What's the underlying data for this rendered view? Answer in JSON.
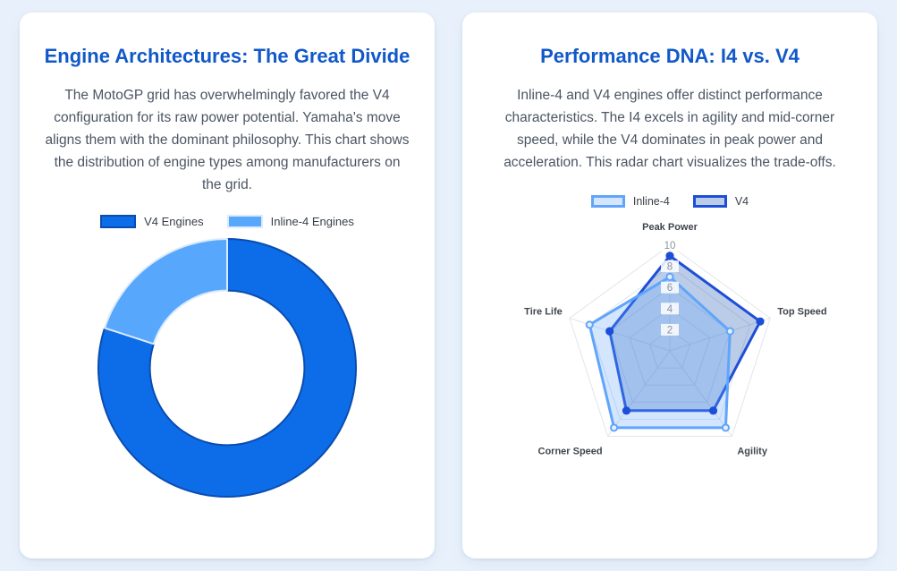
{
  "page": {
    "background_color": "#e8f1fb"
  },
  "cards": {
    "engine_architectures": {
      "title": "Engine Architectures: The Great Divide",
      "description": "The MotoGP grid has overwhelmingly favored the V4 configuration for its raw power potential. Yamaha's move aligns them with the dominant philosophy. This chart shows the distribution of engine types among manufacturers on the grid."
    },
    "performance_dna": {
      "title": "Performance DNA: I4 vs. V4",
      "description": "Inline-4 and V4 engines offer distinct performance characteristics. The I4 excels in agility and mid-corner speed, while the V4 dominates in peak power and acceleration. This radar chart visualizes the trade-offs."
    }
  },
  "theme": {
    "title_color": "#1158c9",
    "body_text_color": "#4b5563",
    "card_background": "#ffffff",
    "grid_color": "#e1e5ea",
    "tick_label_color": "#8d939c",
    "axis_label_color": "#40464e",
    "legend_text_color": "#3a4049"
  },
  "chart_data": [
    {
      "type": "pie",
      "variant": "doughnut",
      "card": "engine_architectures",
      "labels": [
        "V4 Engines",
        "Inline-4 Engines"
      ],
      "values": [
        4,
        1
      ],
      "percentages": [
        80,
        20
      ],
      "colors": [
        "#0d6de8",
        "#57a7fd"
      ],
      "border_colors": [
        "#0a4cb0",
        "#dbeafe"
      ],
      "cutout_percent": 60,
      "start_angle": "top",
      "direction": "clockwise",
      "legend_position": "top"
    },
    {
      "type": "radar",
      "card": "performance_dna",
      "categories": [
        "Peak Power",
        "Top Speed",
        "Agility",
        "Corner Speed",
        "Tire Life"
      ],
      "series": [
        {
          "name": "Inline-4",
          "values": [
            7,
            6,
            9,
            9,
            8
          ],
          "line_color": "#60a5fa",
          "fill_color": "rgba(96,165,250,0.28)",
          "point_fill": "#e4eefc"
        },
        {
          "name": "V4",
          "values": [
            9,
            9,
            7,
            7,
            6
          ],
          "line_color": "#1d4ed8",
          "fill_color": "rgba(30,85,180,0.30)",
          "point_fill": "#1d4ed8"
        }
      ],
      "axis_range": [
        0,
        10
      ],
      "ticks": [
        2,
        4,
        6,
        8,
        10
      ],
      "grid": true,
      "legend_position": "top"
    }
  ]
}
